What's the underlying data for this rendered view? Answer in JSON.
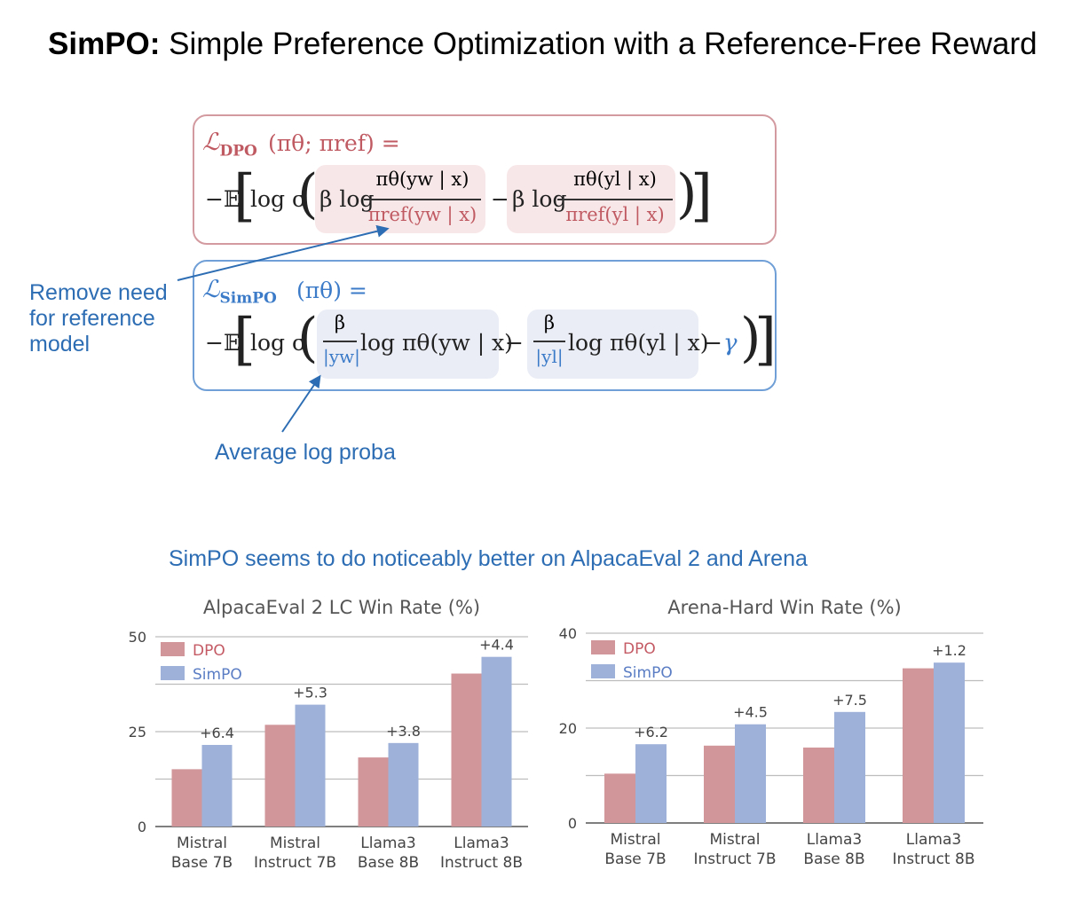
{
  "header": {
    "title_bold": "SimPO:",
    "title_rest": " Simple Preference Optimization with a Reference-Free Reward"
  },
  "formulas": {
    "dpo_lhs": "ℒ",
    "dpo_sub": "DPO",
    "dpo_args": "(πθ; πref) =",
    "dpo_expect": "−𝔼",
    "dpo_logsig": "log σ",
    "dpo_beta1": "β log",
    "dpo_num1": "πθ(yw | x)",
    "dpo_den1": "πref(yw | x)",
    "dpo_minus": "−",
    "dpo_beta2": "β log",
    "dpo_num2": "πθ(yl | x)",
    "dpo_den2": "πref(yl | x)",
    "simpo_lhs": "ℒ",
    "simpo_sub": "SimPO",
    "simpo_args": "(πθ) =",
    "simpo_expect": "−𝔼",
    "simpo_logsig": "log σ",
    "simpo_beta1": "β",
    "simpo_den1": "|yw|",
    "simpo_term1": "log πθ(yw | x)",
    "simpo_minus": "−",
    "simpo_beta2": "β",
    "simpo_den2": "|yl|",
    "simpo_term2": "log πθ(yl | x)",
    "simpo_minus2": "−",
    "simpo_gamma": "γ"
  },
  "annotations": {
    "remove_need": [
      "Remove need",
      "for reference",
      "model"
    ],
    "average_log": "Average log proba"
  },
  "subtitle": "SimPO seems to do noticeably better on AlpacaEval 2 and Arena",
  "colors": {
    "dpo": "#d1969a",
    "simpo": "#9db1d9",
    "accent": "#2d6db3",
    "dpo_legend_text": "#c45a64",
    "simpo_legend_text": "#5a7dc4"
  },
  "chart_data": [
    {
      "type": "bar",
      "title": "AlpacaEval 2 LC Win Rate (%)",
      "categories": [
        [
          "Mistral",
          "Base 7B"
        ],
        [
          "Mistral",
          "Instruct 7B"
        ],
        [
          "Llama3",
          "Base 8B"
        ],
        [
          "Llama3",
          "Instruct 8B"
        ]
      ],
      "series": [
        {
          "name": "DPO",
          "values": [
            15.1,
            26.8,
            18.2,
            40.3
          ]
        },
        {
          "name": "SimPO",
          "values": [
            21.5,
            32.1,
            22.0,
            44.7
          ]
        }
      ],
      "deltas": [
        "+6.4",
        "+5.3",
        "+3.8",
        "+4.4"
      ],
      "yticks": [
        0,
        25,
        50
      ],
      "ylim": [
        0,
        50
      ],
      "legend": "top-left"
    },
    {
      "type": "bar",
      "title": "Arena-Hard Win Rate (%)",
      "categories": [
        [
          "Mistral",
          "Base 7B"
        ],
        [
          "Mistral",
          "Instruct 7B"
        ],
        [
          "Llama3",
          "Base 8B"
        ],
        [
          "Llama3",
          "Instruct 8B"
        ]
      ],
      "series": [
        {
          "name": "DPO",
          "values": [
            10.4,
            16.3,
            15.9,
            32.6
          ]
        },
        {
          "name": "SimPO",
          "values": [
            16.6,
            20.8,
            23.4,
            33.8
          ]
        }
      ],
      "deltas": [
        "+6.2",
        "+4.5",
        "+7.5",
        "+1.2"
      ],
      "yticks": [
        0,
        20,
        40
      ],
      "ylim": [
        0,
        40
      ],
      "legend": "top-left"
    }
  ]
}
